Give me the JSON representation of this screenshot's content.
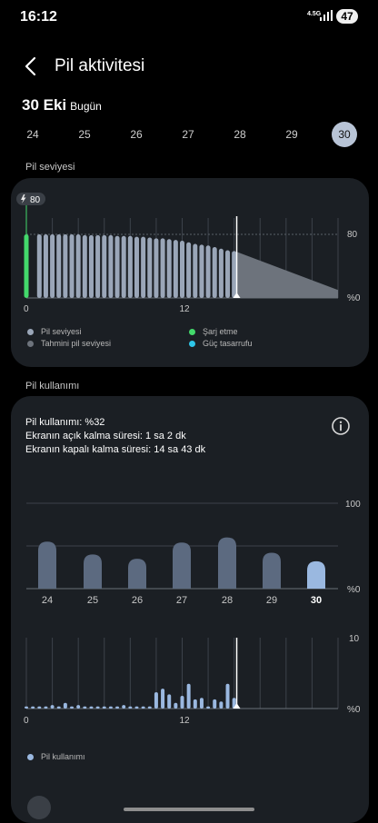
{
  "status_bar": {
    "time": "16:12",
    "network": "4.5G",
    "battery": "47"
  },
  "header": {
    "title": "Pil aktivitesi"
  },
  "date": {
    "main": "30 Eki",
    "sub": "Bugün"
  },
  "days": [
    {
      "label": "24",
      "selected": false
    },
    {
      "label": "25",
      "selected": false
    },
    {
      "label": "26",
      "selected": false
    },
    {
      "label": "27",
      "selected": false
    },
    {
      "label": "28",
      "selected": false
    },
    {
      "label": "29",
      "selected": false
    },
    {
      "label": "30",
      "selected": true
    }
  ],
  "battery_section": {
    "title": "Pil seviyesi",
    "charge_badge": "80",
    "y_top": "80",
    "y_bottom": "%0",
    "x_labels": [
      "0",
      "12"
    ],
    "legend": [
      {
        "label": "Pil seviyesi",
        "color": "#9aa6b8"
      },
      {
        "label": "Şarj etme",
        "color": "#43d96b"
      },
      {
        "label": "Tahmini pil seviyesi",
        "color": "#6d737c"
      },
      {
        "label": "Güç tasarrufu",
        "color": "#2ec6e8"
      }
    ]
  },
  "usage_section": {
    "title": "Pil kullanımı",
    "lines": [
      "Pil kullanımı: %32",
      "Ekranın açık kalma süresi: 1 sa 2 dk",
      "Ekranın kapalı kalma süresi: 14 sa 43 dk"
    ],
    "weekly_y_top": "100",
    "weekly_y_bottom": "%0",
    "hourly_y_top": "10",
    "hourly_y_bottom": "%0",
    "hourly_x_labels": [
      "0",
      "12"
    ],
    "legend_label": "Pil kullanımı"
  },
  "chart_data": [
    {
      "type": "bar",
      "title": "Pil seviyesi",
      "x_unit": "hour",
      "series": [
        {
          "name": "Şarj etme",
          "color": "#43d96b",
          "x": [
            0
          ],
          "values": [
            80
          ]
        },
        {
          "name": "Pil seviyesi",
          "color": "#9aa6b8",
          "x": [
            1,
            1.5,
            2,
            2.5,
            3,
            3.5,
            4,
            4.5,
            5,
            5.5,
            6,
            6.5,
            7,
            7.5,
            8,
            8.5,
            9,
            9.5,
            10,
            10.5,
            11,
            11.5,
            12,
            12.5,
            13,
            13.5,
            14,
            14.5,
            15,
            15.5,
            16
          ],
          "values": [
            80,
            80,
            80,
            80,
            80,
            80,
            80,
            79,
            79,
            79,
            79,
            79,
            78,
            78,
            78,
            77,
            77,
            76,
            75,
            75,
            74,
            73,
            72,
            70,
            68,
            67,
            66,
            64,
            62,
            60,
            59
          ]
        }
      ],
      "estimate": {
        "name": "Tahmini pil seviyesi",
        "x_start": 16.2,
        "x_end": 24,
        "start": 58,
        "end": 10
      },
      "ylim": [
        0,
        100
      ]
    },
    {
      "type": "bar",
      "title": "Pil kullanımı",
      "categories": [
        "24",
        "25",
        "26",
        "27",
        "28",
        "29",
        "30"
      ],
      "values": [
        55,
        40,
        35,
        54,
        60,
        42,
        32
      ],
      "ylim": [
        0,
        100
      ]
    },
    {
      "type": "bar",
      "title": "Pil kullanımı",
      "x_unit": "hour",
      "x": [
        0,
        0.5,
        1,
        1.5,
        2,
        2.5,
        3,
        3.5,
        4,
        4.5,
        5,
        5.5,
        6,
        6.5,
        7,
        7.5,
        8,
        8.5,
        9,
        9.5,
        10,
        10.5,
        11,
        11.5,
        12,
        12.5,
        13,
        13.5,
        14,
        14.5,
        15,
        15.5,
        16
      ],
      "values": [
        0.3,
        0.3,
        0.3,
        0.3,
        0.5,
        0.3,
        0.8,
        0.3,
        0.5,
        0.3,
        0.3,
        0.3,
        0.3,
        0.3,
        0.3,
        0.5,
        0.3,
        0.3,
        0.3,
        0.3,
        2.3,
        2.8,
        2.0,
        0.8,
        1.8,
        3.5,
        1.3,
        1.5,
        0.3,
        1.3,
        1.0,
        3.5,
        1.5
      ],
      "ylim": [
        0,
        10
      ]
    }
  ]
}
